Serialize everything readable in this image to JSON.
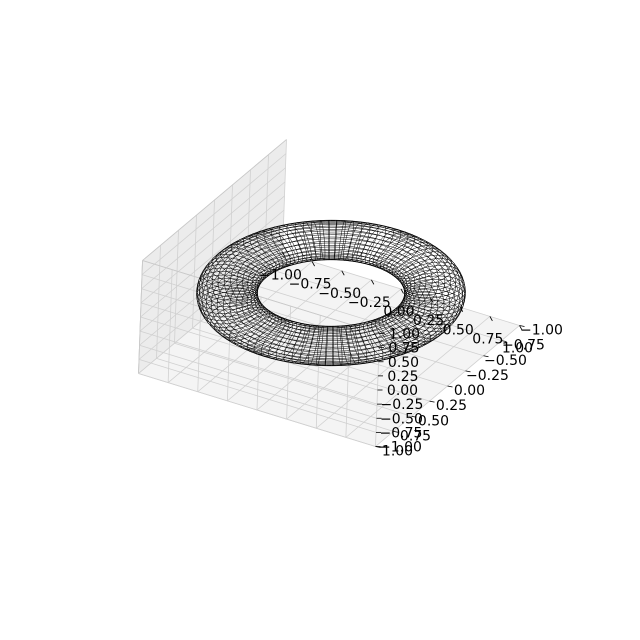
{
  "chart_data": {
    "type": "wireframe",
    "surface": "torus",
    "parametric": {
      "x": "(R + r*cos(v))*cos(u)",
      "y": "(R + r*cos(v))*sin(u)",
      "z": "r*sin(v)",
      "R": 0.75,
      "r": 0.22,
      "u_lines": 100,
      "v_lines": 30
    },
    "wire_color": "#000000",
    "pane_color": "#f2f2f2",
    "grid": true,
    "xlim": [
      -1.0,
      1.0
    ],
    "ylim": [
      -1.0,
      1.0
    ],
    "zlim": [
      -1.0,
      1.0
    ],
    "x_ticks": [
      "−1.00",
      "−0.75",
      "−0.50",
      "−0.25",
      "0.00",
      "0.25",
      "0.50",
      "0.75",
      "1.00"
    ],
    "y_ticks": [
      "−1.00",
      "−0.75",
      "−0.50",
      "−0.25",
      "0.00",
      "0.25",
      "0.50",
      "0.75",
      "1.00"
    ],
    "z_ticks": [
      "−1.00",
      "−0.75",
      "−0.50",
      "−0.25",
      "0.00",
      "0.25",
      "0.50",
      "0.75",
      "1.00"
    ],
    "view": {
      "elev": 30,
      "azim": -60
    }
  }
}
